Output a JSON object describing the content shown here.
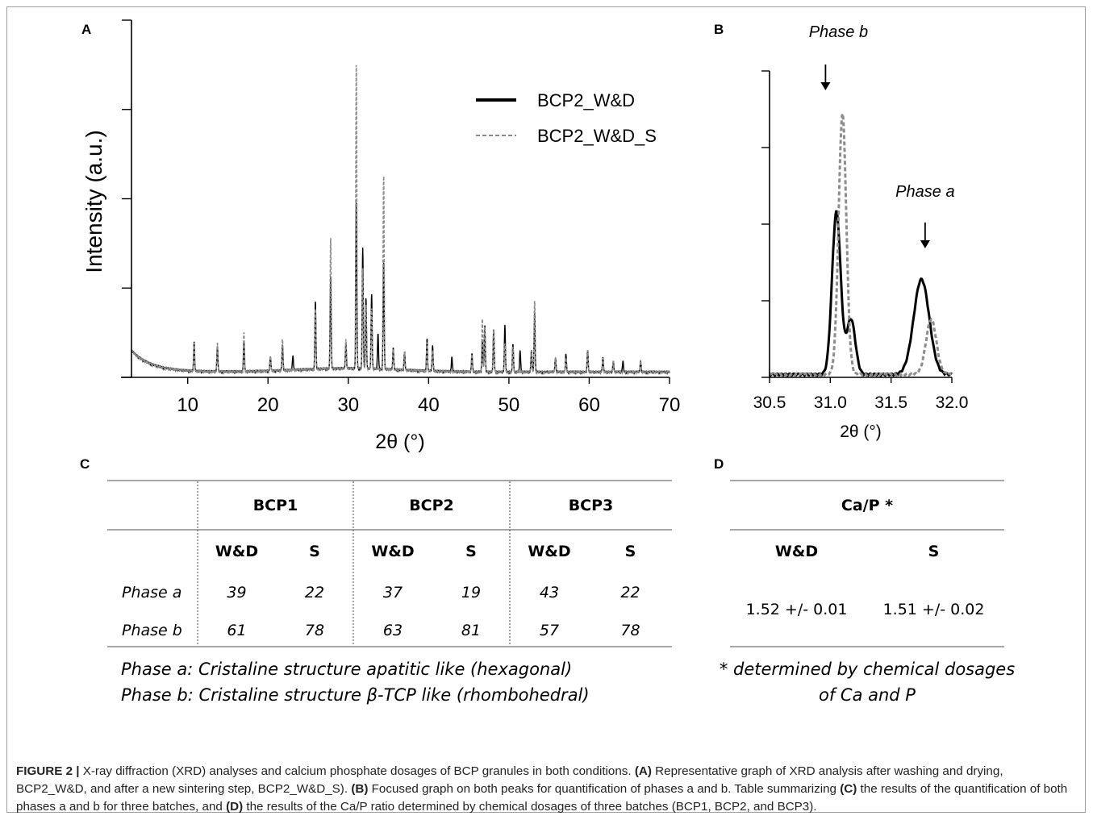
{
  "panels": {
    "a": "A",
    "b": "B",
    "c": "C",
    "d": "D"
  },
  "chart_data": [
    {
      "type": "line",
      "ylabel": "Intensity (a.u.)",
      "xlabel": "2θ (°)",
      "xlim": [
        3,
        70
      ],
      "ylim": [
        0,
        100
      ],
      "xticks": [
        "10",
        "20",
        "30",
        "40",
        "50",
        "60",
        "70"
      ],
      "legend": "top-right",
      "series": [
        {
          "name": "BCP2_W&D",
          "color": "#000000",
          "style": "solid",
          "peaks": [
            [
              10.8,
              8
            ],
            [
              13.7,
              7
            ],
            [
              17,
              8
            ],
            [
              20.3,
              4
            ],
            [
              21.8,
              7
            ],
            [
              23.1,
              4
            ],
            [
              25.9,
              19
            ],
            [
              27.8,
              26
            ],
            [
              29.7,
              7
            ],
            [
              31,
              47
            ],
            [
              31.8,
              34
            ],
            [
              32.2,
              20
            ],
            [
              32.9,
              21
            ],
            [
              33.7,
              10
            ],
            [
              34.4,
              30
            ],
            [
              35.6,
              6
            ],
            [
              37,
              5
            ],
            [
              39.8,
              9
            ],
            [
              40.5,
              7
            ],
            [
              42.9,
              4
            ],
            [
              45.4,
              5
            ],
            [
              46.7,
              9
            ],
            [
              47,
              13
            ],
            [
              48.1,
              12
            ],
            [
              49.5,
              13
            ],
            [
              50.5,
              8
            ],
            [
              51.4,
              6
            ],
            [
              52.8,
              6
            ],
            [
              53.2,
              17
            ],
            [
              55.8,
              4
            ],
            [
              57.1,
              5
            ],
            [
              59.8,
              6
            ],
            [
              61.7,
              4
            ],
            [
              63,
              3
            ],
            [
              64.2,
              3
            ],
            [
              66.4,
              3
            ]
          ]
        },
        {
          "name": "BCP2_W&D_S",
          "color": "#8c8c8c",
          "style": "dashed",
          "peaks": [
            [
              10.8,
              8
            ],
            [
              13.7,
              8
            ],
            [
              17,
              11
            ],
            [
              20.3,
              4
            ],
            [
              21.8,
              9
            ],
            [
              25.9,
              17
            ],
            [
              27.8,
              37
            ],
            [
              29.7,
              8
            ],
            [
              31,
              86
            ],
            [
              31.8,
              28
            ],
            [
              32.2,
              18
            ],
            [
              32.9,
              17
            ],
            [
              34.4,
              55
            ],
            [
              35.6,
              6
            ],
            [
              37,
              5
            ],
            [
              39.8,
              8
            ],
            [
              40.5,
              6
            ],
            [
              45.4,
              5
            ],
            [
              46.7,
              15
            ],
            [
              47,
              13
            ],
            [
              48.1,
              12
            ],
            [
              49.5,
              8
            ],
            [
              50.5,
              7
            ],
            [
              52.8,
              6
            ],
            [
              53.2,
              20
            ],
            [
              55.8,
              4
            ],
            [
              57.1,
              4
            ],
            [
              59.8,
              6
            ],
            [
              61.7,
              4
            ],
            [
              63,
              3
            ],
            [
              66.4,
              3
            ]
          ]
        }
      ]
    },
    {
      "type": "line",
      "xlabel": "2θ (°)",
      "xlim": [
        30.5,
        32.0
      ],
      "ylim": [
        0,
        100
      ],
      "xticks": [
        "30.5",
        "31.0",
        "31.5",
        "32.0"
      ],
      "annotations": [
        "Phase b",
        "Phase a"
      ],
      "annotation_x": [
        31.08,
        31.82
      ],
      "series": [
        {
          "name": "W&D",
          "color": "#000000",
          "style": "solid",
          "peaks": [
            [
              31.05,
              53,
              0.05
            ],
            [
              31.17,
              18,
              0.05
            ],
            [
              31.75,
              31,
              0.09
            ]
          ]
        },
        {
          "name": "S",
          "color": "#8c8c8c",
          "style": "dashed",
          "peaks": [
            [
              31.1,
              85,
              0.045
            ],
            [
              31.83,
              18,
              0.06
            ]
          ]
        }
      ]
    }
  ],
  "table_c": {
    "groups": [
      "BCP1",
      "BCP2",
      "BCP3"
    ],
    "sub": [
      "W&D",
      "S",
      "W&D",
      "S",
      "W&D",
      "S"
    ],
    "rows": [
      {
        "label": "Phase a",
        "values": [
          "39",
          "22",
          "37",
          "19",
          "43",
          "22"
        ]
      },
      {
        "label": "Phase b",
        "values": [
          "61",
          "78",
          "63",
          "81",
          "57",
          "78"
        ]
      }
    ],
    "notes": [
      "Phase a: Cristaline structure apatitic like (hexagonal)",
      "Phase b: Cristaline structure β-TCP like (rhombohedral)"
    ]
  },
  "table_d": {
    "header": "Ca/P *",
    "sub": [
      "W&D",
      "S"
    ],
    "values": [
      "1.52 +/- 0.01",
      "1.51 +/- 0.02"
    ],
    "notes": [
      "* determined by chemical dosages",
      "of Ca and P"
    ]
  },
  "caption": {
    "figure": "FIGURE 2 |",
    "t1": " X-ray diffraction (XRD) analyses and calcium phosphate dosages of BCP granules in both conditions. ",
    "b1": "(A)",
    "t2": " Representative graph of XRD analysis after washing and drying, BCP2_W&D, and after a new sintering step, BCP2_W&D_S). ",
    "b2": "(B)",
    "t3": " Focused graph on both peaks for quantification of phases a and b. Table summarizing ",
    "b3": "(C)",
    "t4": " the results of the quantification of both phases a and b for three batches, and ",
    "b4": "(D)",
    "t5": " the results of the Ca/P ratio determined by chemical dosages of three batches (BCP1, BCP2, and BCP3)."
  }
}
